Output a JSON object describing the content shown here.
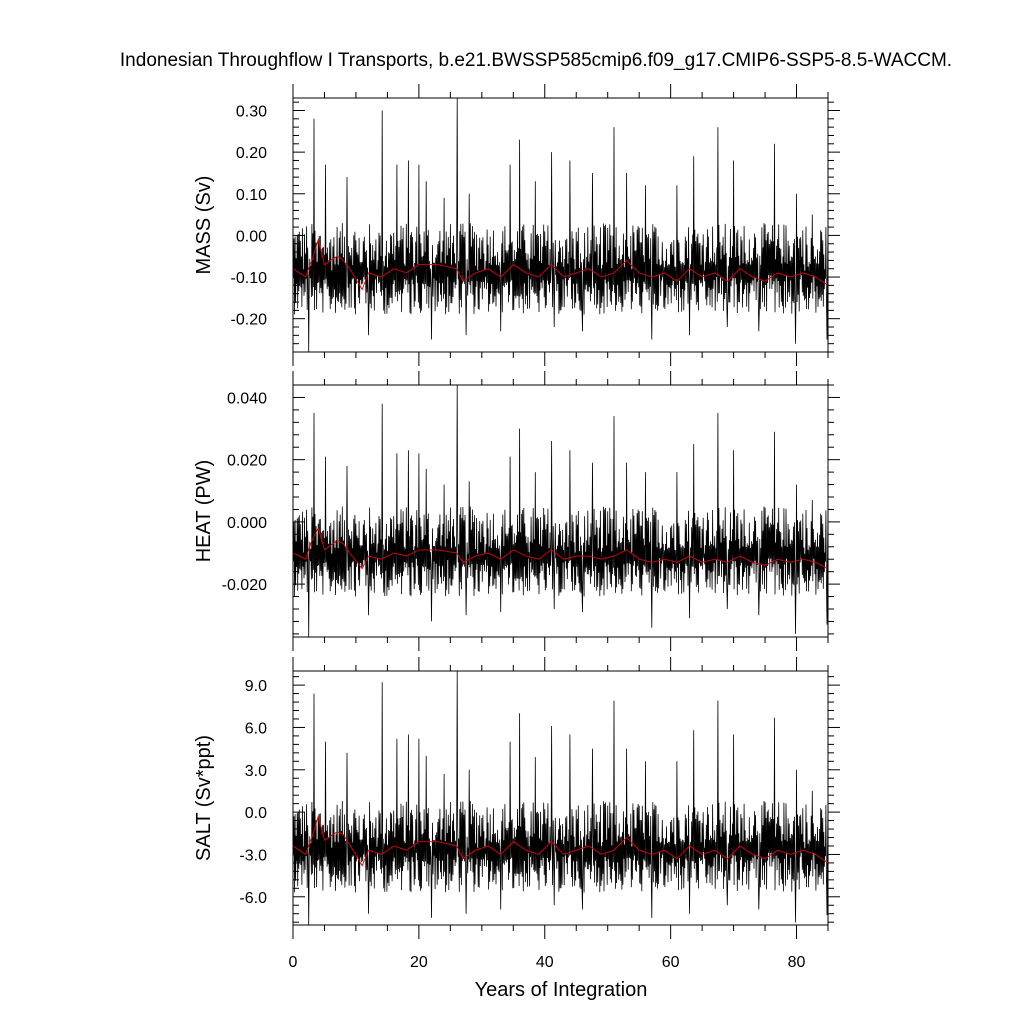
{
  "title": "Indonesian Throughflow I Transports, b.e21.BWSSP585cmip6.f09_g17.CMIP6-SSP5-8.5-WACCM.",
  "xlabel": "Years of Integration",
  "colors": {
    "raw_series": "#000000",
    "smoothed_series": "#e00000"
  },
  "chart_data": [
    {
      "type": "line",
      "ylabel": "MASS (Sv)",
      "xlim": [
        0,
        85
      ],
      "ylim": [
        -0.28,
        0.33
      ],
      "yticks": [
        -0.2,
        -0.1,
        0.0,
        0.1,
        0.2,
        0.3
      ],
      "ytick_labels": [
        "-0.20",
        "-0.10",
        "0.00",
        "0.10",
        "0.20",
        "0.30"
      ],
      "xticks": [
        0,
        20,
        40,
        60,
        80
      ],
      "xtick_labels": [],
      "smoothed": {
        "x": [
          0,
          2,
          3,
          4,
          5,
          7,
          8,
          9,
          11,
          12,
          14,
          16,
          18,
          20,
          23,
          26,
          27,
          29,
          31,
          33,
          35,
          37,
          39,
          41,
          43,
          45,
          47,
          49,
          51,
          53,
          55,
          57,
          59,
          61,
          63,
          65,
          67,
          69,
          71,
          73,
          75,
          77,
          79,
          81,
          83,
          85
        ],
        "y": [
          -0.08,
          -0.1,
          -0.06,
          -0.01,
          -0.07,
          -0.05,
          -0.06,
          -0.08,
          -0.13,
          -0.09,
          -0.1,
          -0.08,
          -0.09,
          -0.07,
          -0.07,
          -0.08,
          -0.11,
          -0.09,
          -0.08,
          -0.1,
          -0.07,
          -0.09,
          -0.1,
          -0.07,
          -0.1,
          -0.09,
          -0.08,
          -0.1,
          -0.09,
          -0.06,
          -0.09,
          -0.1,
          -0.09,
          -0.11,
          -0.08,
          -0.1,
          -0.09,
          -0.11,
          -0.08,
          -0.1,
          -0.11,
          -0.09,
          -0.1,
          -0.09,
          -0.1,
          -0.12
        ]
      },
      "raw": {
        "mean": -0.09,
        "amp_pos": 0.12,
        "amp_neg": 0.1,
        "peaks": [
          [
            3.3,
            0.28
          ],
          [
            5.2,
            0.17
          ],
          [
            8.6,
            0.14
          ],
          [
            14.2,
            0.3
          ],
          [
            16.5,
            0.17
          ],
          [
            18.3,
            0.18
          ],
          [
            20.0,
            0.17
          ],
          [
            21.2,
            0.13
          ],
          [
            24.0,
            0.09
          ],
          [
            26.1,
            0.33
          ],
          [
            28.0,
            0.1
          ],
          [
            34.5,
            0.17
          ],
          [
            36.0,
            0.23
          ],
          [
            38.5,
            0.13
          ],
          [
            41.1,
            0.2
          ],
          [
            44.0,
            0.18
          ],
          [
            47.6,
            0.15
          ],
          [
            51.0,
            0.26
          ],
          [
            53.0,
            0.15
          ],
          [
            56.0,
            0.12
          ],
          [
            61.0,
            0.12
          ],
          [
            63.7,
            0.19
          ],
          [
            67.5,
            0.26
          ],
          [
            70.0,
            0.18
          ],
          [
            76.5,
            0.22
          ],
          [
            80.0,
            0.1
          ],
          [
            82.5,
            0.05
          ]
        ],
        "troughs": [
          [
            2.5,
            -0.28
          ],
          [
            12.0,
            -0.24
          ],
          [
            22.0,
            -0.25
          ],
          [
            27.5,
            -0.24
          ],
          [
            33.0,
            -0.23
          ],
          [
            41.5,
            -0.22
          ],
          [
            46.0,
            -0.23
          ],
          [
            57.0,
            -0.25
          ],
          [
            63.0,
            -0.24
          ],
          [
            69.0,
            -0.22
          ],
          [
            74.0,
            -0.23
          ],
          [
            79.8,
            -0.26
          ],
          [
            84.8,
            -0.25
          ]
        ]
      }
    },
    {
      "type": "line",
      "ylabel": "HEAT (PW)",
      "xlim": [
        0,
        85
      ],
      "ylim": [
        -0.037,
        0.044
      ],
      "yticks": [
        -0.02,
        0.0,
        0.02,
        0.04
      ],
      "ytick_labels": [
        "-0.020",
        "0.000",
        "0.020",
        "0.040"
      ],
      "xticks": [
        0,
        20,
        40,
        60,
        80
      ],
      "xtick_labels": [],
      "smoothed": {
        "x": [
          0,
          2,
          3,
          4,
          5,
          7,
          8,
          9,
          11,
          12,
          14,
          16,
          18,
          20,
          23,
          26,
          27,
          29,
          31,
          33,
          35,
          37,
          39,
          41,
          43,
          45,
          47,
          49,
          51,
          53,
          55,
          57,
          59,
          61,
          63,
          65,
          67,
          69,
          71,
          73,
          75,
          77,
          79,
          81,
          83,
          85
        ],
        "y": [
          -0.01,
          -0.012,
          -0.006,
          -0.002,
          -0.009,
          -0.006,
          -0.007,
          -0.01,
          -0.015,
          -0.011,
          -0.012,
          -0.01,
          -0.011,
          -0.009,
          -0.009,
          -0.01,
          -0.013,
          -0.011,
          -0.01,
          -0.012,
          -0.009,
          -0.011,
          -0.012,
          -0.009,
          -0.012,
          -0.011,
          -0.011,
          -0.012,
          -0.011,
          -0.009,
          -0.012,
          -0.013,
          -0.012,
          -0.013,
          -0.011,
          -0.013,
          -0.012,
          -0.013,
          -0.011,
          -0.013,
          -0.014,
          -0.012,
          -0.013,
          -0.012,
          -0.013,
          -0.015
        ]
      },
      "raw": {
        "mean": -0.011,
        "amp_pos": 0.016,
        "amp_neg": 0.013,
        "peaks": [
          [
            3.3,
            0.035
          ],
          [
            5.2,
            0.021
          ],
          [
            8.6,
            0.018
          ],
          [
            14.2,
            0.038
          ],
          [
            16.5,
            0.022
          ],
          [
            18.3,
            0.023
          ],
          [
            20.0,
            0.022
          ],
          [
            21.2,
            0.017
          ],
          [
            24.0,
            0.012
          ],
          [
            26.1,
            0.044
          ],
          [
            28.0,
            0.013
          ],
          [
            34.5,
            0.021
          ],
          [
            36.0,
            0.03
          ],
          [
            38.5,
            0.016
          ],
          [
            41.1,
            0.026
          ],
          [
            44.0,
            0.023
          ],
          [
            47.6,
            0.019
          ],
          [
            51.0,
            0.034
          ],
          [
            53.0,
            0.019
          ],
          [
            56.0,
            0.016
          ],
          [
            61.0,
            0.016
          ],
          [
            63.7,
            0.025
          ],
          [
            67.5,
            0.035
          ],
          [
            70.0,
            0.023
          ],
          [
            76.5,
            0.029
          ],
          [
            80.0,
            0.012
          ],
          [
            82.5,
            0.007
          ]
        ],
        "troughs": [
          [
            2.5,
            -0.037
          ],
          [
            12.0,
            -0.03
          ],
          [
            22.0,
            -0.032
          ],
          [
            27.5,
            -0.03
          ],
          [
            33.0,
            -0.029
          ],
          [
            41.5,
            -0.028
          ],
          [
            46.0,
            -0.029
          ],
          [
            57.0,
            -0.034
          ],
          [
            63.0,
            -0.031
          ],
          [
            69.0,
            -0.028
          ],
          [
            74.0,
            -0.03
          ],
          [
            79.8,
            -0.036
          ],
          [
            84.8,
            -0.033
          ]
        ]
      }
    },
    {
      "type": "line",
      "ylabel": "SALT (Sv*ppt)",
      "xlim": [
        0,
        85
      ],
      "ylim": [
        -8.0,
        10.0
      ],
      "yticks": [
        -6,
        -3,
        0,
        3,
        6,
        9
      ],
      "ytick_labels": [
        "-6.0",
        "-3.0",
        "0.0",
        "3.0",
        "6.0",
        "9.0"
      ],
      "xticks": [
        0,
        20,
        40,
        60,
        80
      ],
      "xtick_labels": [
        "0",
        "20",
        "40",
        "60",
        "80"
      ],
      "smoothed": {
        "x": [
          0,
          2,
          3,
          4,
          5,
          7,
          8,
          9,
          11,
          12,
          14,
          16,
          18,
          20,
          23,
          26,
          27,
          29,
          31,
          33,
          35,
          37,
          39,
          41,
          43,
          45,
          47,
          49,
          51,
          53,
          55,
          57,
          59,
          61,
          63,
          65,
          67,
          69,
          71,
          73,
          75,
          77,
          79,
          81,
          83,
          85
        ],
        "y": [
          -2.4,
          -3.0,
          -1.8,
          -0.3,
          -2.0,
          -1.4,
          -1.6,
          -2.3,
          -3.8,
          -2.7,
          -3.0,
          -2.4,
          -2.7,
          -2.1,
          -2.1,
          -2.4,
          -3.3,
          -2.7,
          -2.4,
          -3.0,
          -2.1,
          -2.7,
          -3.0,
          -2.1,
          -3.0,
          -2.7,
          -2.4,
          -3.0,
          -2.7,
          -1.8,
          -2.7,
          -3.0,
          -2.7,
          -3.3,
          -2.4,
          -3.0,
          -2.7,
          -3.3,
          -2.4,
          -3.0,
          -3.3,
          -2.7,
          -3.0,
          -2.7,
          -3.0,
          -3.6
        ]
      },
      "raw": {
        "mean": -2.7,
        "amp_pos": 3.5,
        "amp_neg": 3.0,
        "peaks": [
          [
            3.3,
            8.4
          ],
          [
            5.2,
            5.0
          ],
          [
            8.6,
            4.2
          ],
          [
            14.2,
            9.2
          ],
          [
            16.5,
            5.2
          ],
          [
            18.3,
            5.5
          ],
          [
            20.0,
            5.2
          ],
          [
            21.2,
            4.0
          ],
          [
            24.0,
            2.7
          ],
          [
            26.1,
            10.0
          ],
          [
            28.0,
            3.0
          ],
          [
            34.5,
            5.0
          ],
          [
            36.0,
            7.0
          ],
          [
            38.5,
            3.9
          ],
          [
            41.1,
            6.1
          ],
          [
            44.0,
            5.5
          ],
          [
            47.6,
            4.5
          ],
          [
            51.0,
            7.9
          ],
          [
            53.0,
            4.5
          ],
          [
            56.0,
            3.6
          ],
          [
            61.0,
            3.6
          ],
          [
            63.7,
            5.8
          ],
          [
            67.5,
            7.9
          ],
          [
            70.0,
            5.5
          ],
          [
            76.5,
            6.7
          ],
          [
            80.0,
            3.0
          ],
          [
            82.5,
            1.5
          ]
        ],
        "troughs": [
          [
            2.5,
            -8.0
          ],
          [
            12.0,
            -7.2
          ],
          [
            22.0,
            -7.5
          ],
          [
            27.5,
            -7.2
          ],
          [
            33.0,
            -6.9
          ],
          [
            41.5,
            -6.6
          ],
          [
            46.0,
            -6.9
          ],
          [
            57.0,
            -7.5
          ],
          [
            63.0,
            -7.2
          ],
          [
            69.0,
            -6.6
          ],
          [
            74.0,
            -6.9
          ],
          [
            79.8,
            -7.8
          ],
          [
            84.8,
            -7.3
          ]
        ]
      }
    }
  ]
}
